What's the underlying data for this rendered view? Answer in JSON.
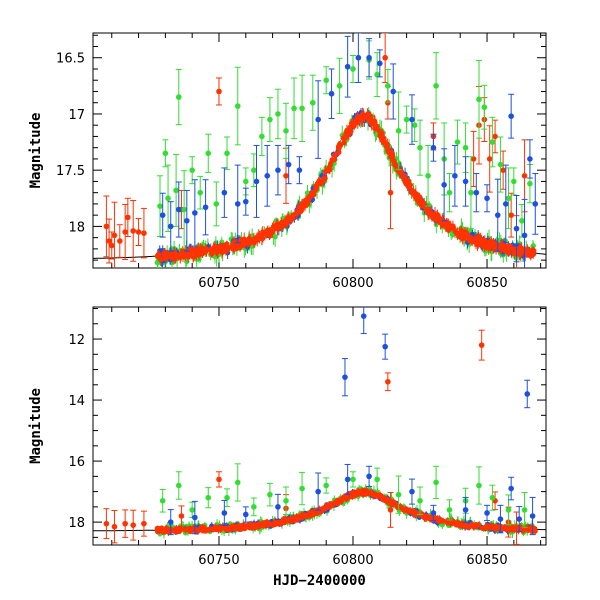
{
  "chart_data": [
    {
      "type": "scatter",
      "ylabel": "Magnitude",
      "xlabel": "",
      "xlim": [
        60703,
        60872
      ],
      "ylim": [
        18.37,
        16.28
      ],
      "y_inverted": true,
      "x_ticks": [
        60750,
        60800,
        60850
      ],
      "x_tick_labels": [
        "60750",
        "60800",
        "60850"
      ],
      "y_ticks": [
        16.5,
        17,
        17.5,
        18
      ],
      "y_tick_labels": [
        "16.5",
        "17",
        "17.5",
        "18"
      ],
      "series": [
        {
          "color": "#ff3300",
          "shape": "circle",
          "values": [
            [
              60708,
              18.0
            ],
            [
              60709,
              18.13
            ],
            [
              60710,
              18.17
            ],
            [
              60711,
              18.08
            ],
            [
              60713,
              18.13
            ],
            [
              60715,
              18.05
            ],
            [
              60716,
              17.92
            ],
            [
              60718,
              18.04
            ],
            [
              60720,
              18.05
            ],
            [
              60722,
              18.06
            ],
            [
              60736,
              17.85
            ],
            [
              60750,
              16.8
            ],
            [
              60775,
              17.55
            ],
            [
              60812,
              16.5
            ],
            [
              60813,
              16.9
            ],
            [
              60814,
              17.7
            ],
            [
              60830,
              17.2
            ],
            [
              60845,
              17.4
            ],
            [
              60847,
              17.1
            ],
            [
              60849,
              17.05
            ],
            [
              60851,
              17.4
            ],
            [
              60853,
              17.2
            ],
            [
              60856,
              17.5
            ],
            [
              60859,
              17.9
            ],
            [
              60861,
              18.2
            ],
            [
              60864,
              17.55
            ]
          ]
        },
        {
          "color": "#33dd33",
          "shape": "circle",
          "values": [
            [
              60728,
              17.82
            ],
            [
              60730,
              17.35
            ],
            [
              60731,
              17.75
            ],
            [
              60734,
              17.68
            ],
            [
              60735,
              16.85
            ],
            [
              60737,
              17.85
            ],
            [
              60740,
              17.5
            ],
            [
              60743,
              17.7
            ],
            [
              60746,
              17.35
            ],
            [
              60749,
              17.8
            ],
            [
              60753,
              17.35
            ],
            [
              60757,
              16.93
            ],
            [
              60760,
              17.6
            ],
            [
              60763,
              17.5
            ],
            [
              60766,
              17.2
            ],
            [
              60769,
              17.05
            ],
            [
              60772,
              17.0
            ],
            [
              60775,
              17.15
            ],
            [
              60778,
              16.95
            ],
            [
              60781,
              16.95
            ],
            [
              60785,
              16.9
            ],
            [
              60790,
              16.7
            ],
            [
              60795,
              16.75
            ],
            [
              60800,
              16.6
            ],
            [
              60806,
              16.52
            ],
            [
              60809,
              16.65
            ],
            [
              60813,
              16.75
            ],
            [
              60817,
              17.15
            ],
            [
              60820,
              17.05
            ],
            [
              60823,
              17.1
            ],
            [
              60825,
              17.3
            ],
            [
              60828,
              17.55
            ],
            [
              60831,
              16.75
            ],
            [
              60834,
              17.4
            ],
            [
              60836,
              17.7
            ],
            [
              60839,
              17.25
            ],
            [
              60842,
              17.3
            ],
            [
              60844,
              17.7
            ],
            [
              60847,
              16.87
            ],
            [
              60849,
              16.94
            ],
            [
              60852,
              17.25
            ],
            [
              60855,
              17.45
            ],
            [
              60858,
              17.75
            ],
            [
              60860,
              17.6
            ],
            [
              60863,
              17.95
            ],
            [
              60866,
              17.62
            ]
          ]
        },
        {
          "color": "#1e50e0",
          "shape": "circle",
          "values": [
            [
              60729,
              17.9
            ],
            [
              60732,
              18.0
            ],
            [
              60735,
              17.85
            ],
            [
              60738,
              17.95
            ],
            [
              60741,
              17.88
            ],
            [
              60745,
              17.83
            ],
            [
              60752,
              17.7
            ],
            [
              60757,
              17.8
            ],
            [
              60760,
              17.78
            ],
            [
              60764,
              17.6
            ],
            [
              60768,
              17.55
            ],
            [
              60772,
              17.5
            ],
            [
              60776,
              17.45
            ],
            [
              60780,
              17.5
            ],
            [
              60787,
              17.05
            ],
            [
              60792,
              16.82
            ],
            [
              60798,
              16.58
            ],
            [
              60802,
              16.5
            ],
            [
              60806,
              16.5
            ],
            [
              60810,
              16.55
            ],
            [
              60815,
              16.8
            ],
            [
              60822,
              17.05
            ],
            [
              60830,
              17.3
            ],
            [
              60834,
              17.63
            ],
            [
              60838,
              17.55
            ],
            [
              60842,
              17.6
            ],
            [
              60846,
              17.7
            ],
            [
              60850,
              17.75
            ],
            [
              60854,
              17.9
            ],
            [
              60857,
              17.8
            ],
            [
              60859,
              17.02
            ],
            [
              60861,
              18.02
            ],
            [
              60864,
              18.08
            ],
            [
              60866,
              17.4
            ],
            [
              60868,
              17.8
            ]
          ]
        }
      ]
    },
    {
      "type": "scatter",
      "ylabel": "Magnitude",
      "xlabel": "HJD−2400000",
      "xlim": [
        60703,
        60872
      ],
      "ylim": [
        18.75,
        10.95
      ],
      "y_inverted": true,
      "x_ticks": [
        60750,
        60800,
        60850
      ],
      "x_tick_labels": [
        "60750",
        "60800",
        "60850"
      ],
      "y_ticks": [
        12,
        14,
        16,
        18
      ],
      "y_tick_labels": [
        "12",
        "14",
        "16",
        "18"
      ],
      "series": [
        {
          "color": "#ff3300",
          "shape": "circle",
          "values": [
            [
              60708,
              18.05
            ],
            [
              60711,
              18.15
            ],
            [
              60715,
              18.05
            ],
            [
              60718,
              18.1
            ],
            [
              60722,
              18.05
            ],
            [
              60736,
              17.8
            ],
            [
              60750,
              16.6
            ],
            [
              60775,
              17.55
            ],
            [
              60813,
              13.4
            ],
            [
              60814,
              17.6
            ],
            [
              60848,
              12.2
            ],
            [
              60853,
              17.3
            ],
            [
              60858,
              18.0
            ],
            [
              60861,
              18.2
            ]
          ]
        },
        {
          "color": "#33dd33",
          "shape": "circle",
          "values": [
            [
              60729,
              17.3
            ],
            [
              60735,
              16.8
            ],
            [
              60740,
              17.6
            ],
            [
              60746,
              17.2
            ],
            [
              60753,
              17.2
            ],
            [
              60757,
              16.7
            ],
            [
              60763,
              17.5
            ],
            [
              60769,
              17.1
            ],
            [
              60775,
              17.3
            ],
            [
              60781,
              16.9
            ],
            [
              60790,
              16.8
            ],
            [
              60800,
              16.6
            ],
            [
              60809,
              16.6
            ],
            [
              60817,
              17.1
            ],
            [
              60825,
              17.3
            ],
            [
              60831,
              16.7
            ],
            [
              60836,
              17.6
            ],
            [
              60842,
              17.3
            ],
            [
              60847,
              16.8
            ],
            [
              60852,
              17.2
            ],
            [
              60858,
              17.6
            ],
            [
              60864,
              17.6
            ]
          ]
        },
        {
          "color": "#1e50e0",
          "shape": "circle",
          "values": [
            [
              60732,
              18.0
            ],
            [
              60741,
              17.85
            ],
            [
              60752,
              17.7
            ],
            [
              60760,
              17.75
            ],
            [
              60772,
              17.5
            ],
            [
              60787,
              17.0
            ],
            [
              60797,
              13.25
            ],
            [
              60798,
              16.6
            ],
            [
              60804,
              11.25
            ],
            [
              60806,
              16.5
            ],
            [
              60812,
              12.25
            ],
            [
              60822,
              17.0
            ],
            [
              60830,
              17.7
            ],
            [
              60842,
              17.6
            ],
            [
              60850,
              17.7
            ],
            [
              60855,
              17.9
            ],
            [
              60859,
              16.9
            ],
            [
              60862,
              17.9
            ],
            [
              60865,
              13.8
            ],
            [
              60867,
              17.8
            ]
          ]
        }
      ]
    }
  ]
}
